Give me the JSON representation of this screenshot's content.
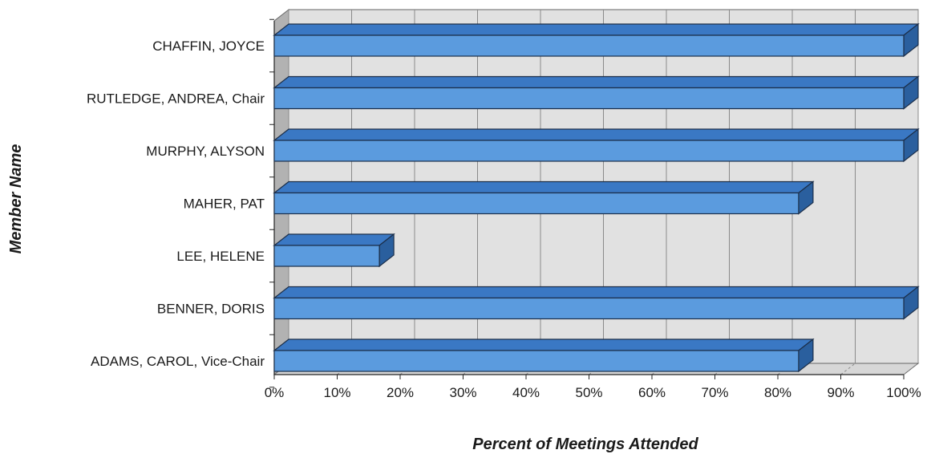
{
  "chart_data": {
    "type": "bar",
    "orientation": "horizontal",
    "style": "3d",
    "title": "",
    "xlabel": "Percent of Meetings Attended",
    "ylabel": "Member Name",
    "categories": [
      "CHAFFIN, JOYCE",
      "RUTLEDGE, ANDREA, Chair",
      "MURPHY, ALYSON",
      "MAHER, PAT",
      "LEE, HELENE",
      "BENNER, DORIS",
      "ADAMS, CAROL, Vice-Chair"
    ],
    "values": [
      100,
      100,
      100,
      83.3,
      16.7,
      100,
      83.3
    ],
    "xlim": [
      0,
      100
    ],
    "xticks": [
      "0%",
      "10%",
      "20%",
      "30%",
      "40%",
      "50%",
      "60%",
      "70%",
      "80%",
      "90%",
      "100%"
    ],
    "grid": true,
    "legend": "none"
  },
  "colors": {
    "bar_front": "#5b9bde",
    "bar_top": "#3a78c4",
    "bar_side": "#2a5f9e",
    "bar_outline": "#1c2f4a",
    "back_wall": "#e1e1e1",
    "side_wall": "#b2b2b2",
    "floor": "#d7d7d7",
    "grid": "#8a8a8a"
  }
}
